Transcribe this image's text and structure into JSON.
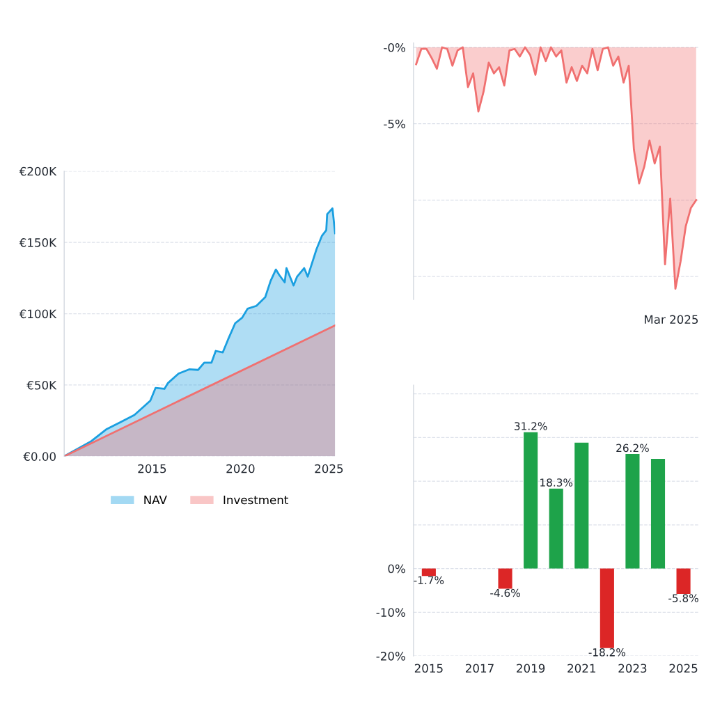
{
  "chart_data": [
    {
      "type": "area",
      "xlim": [
        2010.03,
        2025.35
      ],
      "xticks": [
        2015,
        2020,
        2025
      ],
      "ylim": [
        0,
        200
      ],
      "yticks": [
        {
          "value": 0,
          "label": "€0.00"
        },
        {
          "value": 50,
          "label": "€50K"
        },
        {
          "value": 100,
          "label": "€100K"
        },
        {
          "value": 150,
          "label": "€150K"
        },
        {
          "value": 200,
          "label": "€200K"
        }
      ],
      "grid": "y",
      "legend": "bottom",
      "series": [
        {
          "name": "NAV",
          "color": "#1a9fe0",
          "x": [
            2010.03,
            2011.56,
            2012.4,
            2013.2,
            2014.0,
            2014.9,
            2015.2,
            2015.7,
            2015.9,
            2016.5,
            2017.1,
            2017.6,
            2017.95,
            2018.36,
            2018.6,
            2019.0,
            2019.3,
            2019.7,
            2020.1,
            2020.4,
            2020.9,
            2021.4,
            2021.7,
            2022.0,
            2022.2,
            2022.5,
            2022.6,
            2023.0,
            2023.2,
            2023.6,
            2023.8,
            2024.3,
            2024.6,
            2024.85,
            2024.9,
            2025.2,
            2025.35
          ],
          "values": [
            0,
            10.6,
            18.8,
            23.9,
            29,
            39,
            48,
            47.3,
            51.4,
            58,
            61,
            60.6,
            65.7,
            65.7,
            73.9,
            72.9,
            82,
            93.3,
            97.3,
            103.5,
            105.5,
            111.6,
            122.9,
            131,
            127,
            122,
            132,
            119.8,
            126,
            132,
            126,
            145.3,
            154.5,
            158.6,
            169.8,
            173.9,
            156.5
          ]
        },
        {
          "name": "Investment",
          "color": "#f07070",
          "x": [
            2010.03,
            2025.35
          ],
          "values": [
            0,
            91.8
          ]
        }
      ]
    },
    {
      "type": "area",
      "categories": [
        null,
        null,
        null,
        null,
        null,
        null,
        null,
        null,
        null,
        null,
        null,
        null,
        null,
        null,
        null,
        null,
        null,
        null,
        null,
        null,
        null,
        null,
        null,
        null,
        null,
        null,
        null,
        null,
        null,
        null,
        null,
        null,
        null,
        null,
        null,
        null,
        null,
        null,
        null,
        null,
        null,
        null,
        null,
        null,
        null,
        null,
        null,
        null,
        null,
        null,
        null,
        null,
        null,
        null,
        null
      ],
      "values": [
        -1.1,
        -0.1,
        -0.1,
        -0.7,
        -1.4,
        0,
        -0.1,
        -1.2,
        -0.2,
        0,
        -2.6,
        -1.7,
        -4.2,
        -2.9,
        -1.0,
        -1.7,
        -1.3,
        -2.5,
        -0.2,
        -0.1,
        -0.6,
        0,
        -0.5,
        -1.8,
        0,
        -0.9,
        0,
        -0.6,
        -0.2,
        -2.3,
        -1.3,
        -2.2,
        -1.2,
        -1.7,
        -0.1,
        -1.5,
        -0.1,
        0,
        -1.2,
        -0.6,
        -2.3,
        -1.2,
        -6.7,
        -8.9,
        -7.8,
        -6.1,
        -7.6,
        -6.5,
        -14.2,
        -9.9,
        -15.8,
        -14.0,
        -11.7,
        -10.5,
        -10.0
      ],
      "color": "#f07070",
      "ylim": [
        -16.5,
        0.3
      ],
      "yticks": [
        {
          "value": 0,
          "label": "-0%"
        },
        {
          "value": -5,
          "label": "-5%"
        },
        {
          "value": -10,
          "label": null
        },
        {
          "value": -15,
          "label": null
        }
      ],
      "grid": "y",
      "annotations": [
        "Mar 2025"
      ]
    },
    {
      "type": "bar",
      "categories": [
        "2015",
        null,
        "2017",
        null,
        "2019",
        null,
        "2021",
        null,
        "2023",
        null,
        "2025"
      ],
      "values": [
        -1.7,
        null,
        null,
        -4.6,
        31.2,
        18.3,
        28.8,
        -18.2,
        26.2,
        25.1,
        -5.8
      ],
      "colors": [
        "#dc2626",
        "#1ea34a",
        "#1ea34a",
        "#dc2626",
        "#1ea34a",
        "#1ea34a",
        "#1ea34a",
        "#dc2626",
        "#1ea34a",
        "#1ea34a",
        "#dc2626"
      ],
      "value_labels": [
        "-1.7%",
        null,
        null,
        "-4.6%",
        "31.2%",
        "18.3%",
        null,
        "-18.2%",
        "26.2%",
        null,
        "-5.8%"
      ],
      "ylim": [
        -20,
        42
      ],
      "yticks": [
        {
          "value": -20,
          "label": "-20%"
        },
        {
          "value": -10,
          "label": "-10%"
        },
        {
          "value": 0,
          "label": "0%"
        },
        {
          "value": 10,
          "label": null
        },
        {
          "value": 20,
          "label": null
        },
        {
          "value": 30,
          "label": null
        },
        {
          "value": 40,
          "label": null
        }
      ],
      "grid": "y"
    }
  ]
}
